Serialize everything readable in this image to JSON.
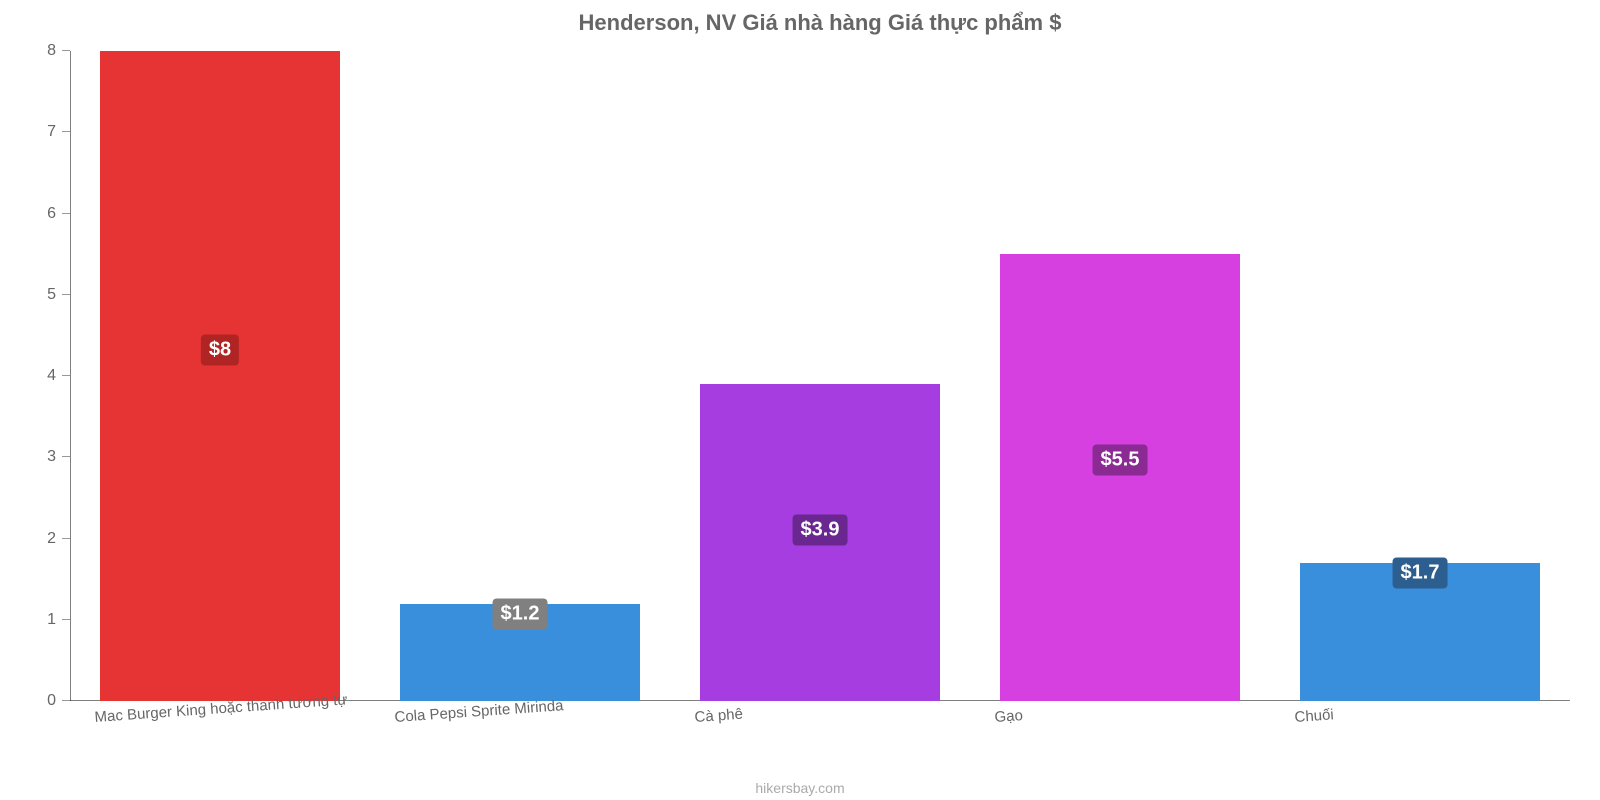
{
  "chart": {
    "type": "bar",
    "title": "Henderson, NV Giá nhà hàng Giá thực phẩm $",
    "title_color": "#666666",
    "title_fontsize": 22,
    "background_color": "#ffffff",
    "axis_color": "rgba(0,0,0,0.5)",
    "tick_color": "rgba(0,0,0,0.4)",
    "ylim": [
      0,
      8
    ],
    "ytick_step": 1,
    "y_ticks": [
      0,
      1,
      2,
      3,
      4,
      5,
      6,
      7,
      8
    ],
    "y_tick_label_color": "#666666",
    "y_tick_fontsize": 16,
    "bar_width_pct": 80,
    "x_label_fontsize": 15,
    "x_label_color": "#666666",
    "x_label_rotate_deg": -4,
    "value_label_fontsize": 20,
    "value_label_padding": "4px 8px",
    "value_label_radius": 4,
    "bars": [
      {
        "category": "Mac Burger King hoặc thanh tương tự",
        "value": 8,
        "display": "$8",
        "fill": "#e63333",
        "label_bg": "#b02424"
      },
      {
        "category": "Cola Pepsi Sprite Mirinda",
        "value": 1.2,
        "display": "$1.2",
        "fill": "#3a8fdd",
        "label_bg": "#808080"
      },
      {
        "category": "Cà phê",
        "value": 3.9,
        "display": "$3.9",
        "fill": "#a63de0",
        "label_bg": "#6a278f"
      },
      {
        "category": "Gạo",
        "value": 5.5,
        "display": "$5.5",
        "fill": "#d63fe0",
        "label_bg": "#8a2a92"
      },
      {
        "category": "Chuối",
        "value": 1.7,
        "display": "$1.7",
        "fill": "#3a8fdd",
        "label_bg": "#2c5e8f"
      }
    ],
    "source": "hikersbay.com",
    "source_color": "#aaaaaa",
    "source_fontsize": 14
  }
}
